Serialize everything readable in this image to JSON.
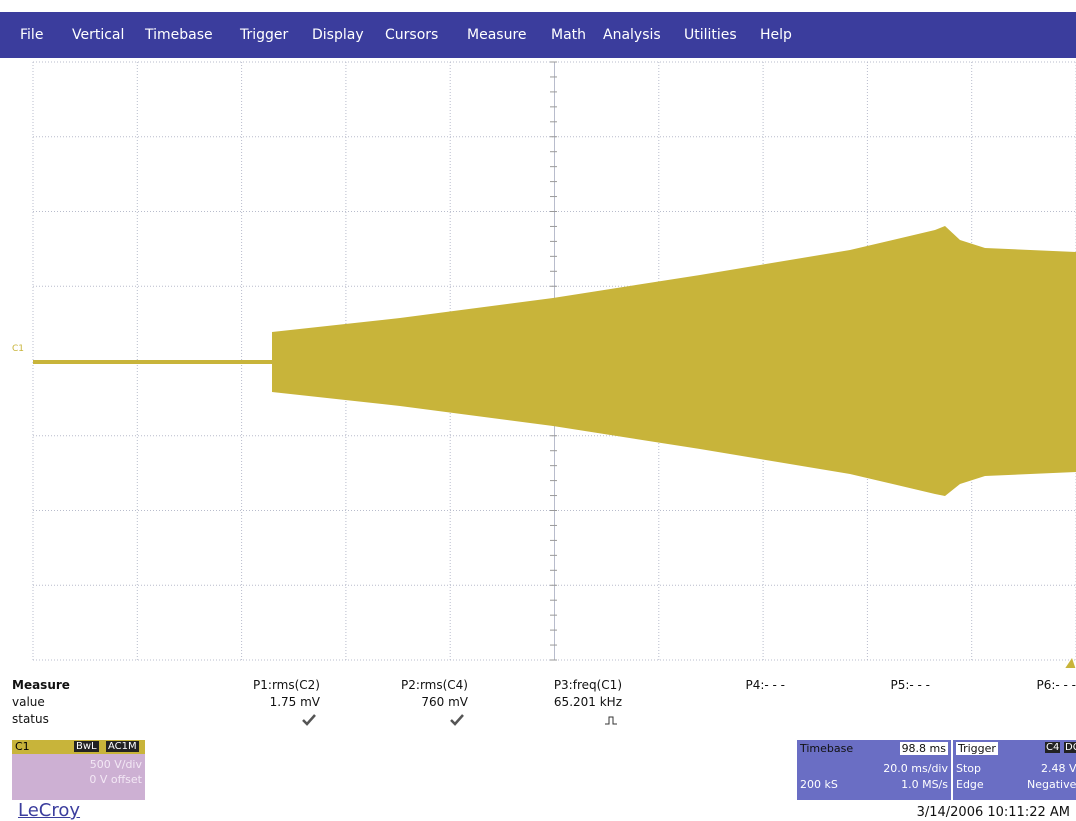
{
  "menu": [
    "File",
    "Vertical",
    "Timebase",
    "Trigger",
    "Display",
    "Cursors",
    "Measure",
    "Math",
    "Analysis",
    "Utilities",
    "Help"
  ],
  "channel_label": "C1",
  "measure": {
    "title": "Measure",
    "row_labels": [
      "value",
      "status"
    ],
    "params": [
      {
        "name": "P1:rms(C2)",
        "value": "1.75 mV"
      },
      {
        "name": "P2:rms(C4)",
        "value": "760 mV"
      },
      {
        "name": "P3:freq(C1)",
        "value": "65.201 kHz"
      },
      {
        "name": "P4:- - -"
      },
      {
        "name": "P5:- - -"
      },
      {
        "name": "P6:- - -"
      }
    ]
  },
  "channel_box": {
    "name": "C1",
    "bw": "BwL",
    "coupling": "AC1M",
    "scale": "500 V/div",
    "offset": "0 V offset"
  },
  "timebase": {
    "title": "Timebase",
    "delay": "98.8 ms",
    "scale": "20.0 ms/div",
    "samples": "200 kS",
    "rate": "1.0 MS/s"
  },
  "trigger": {
    "title": "Trigger",
    "source": "C4",
    "coupling": "DC",
    "level": "2.48 V",
    "mode": "Stop",
    "type": "Edge",
    "slope": "Negative"
  },
  "logo": "LeCroy",
  "timestamp": "3/14/2006 10:11:22 AM"
}
